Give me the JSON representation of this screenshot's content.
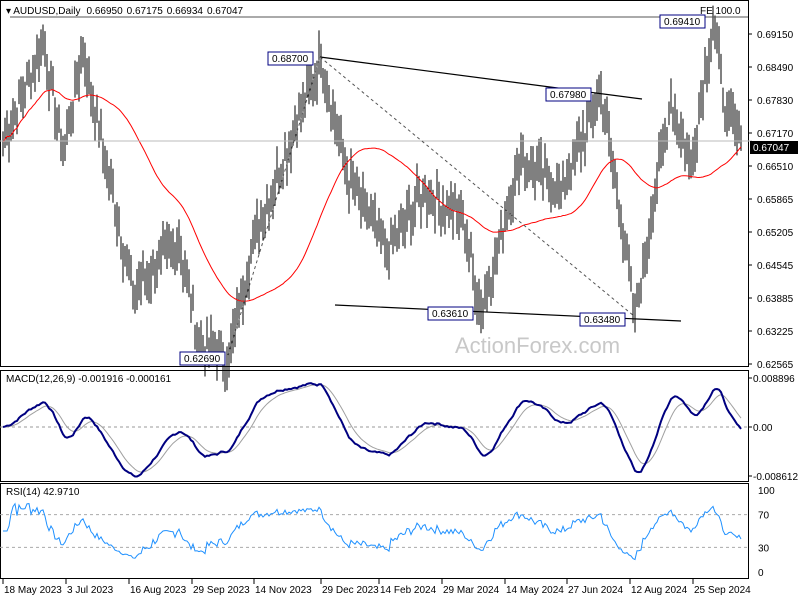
{
  "header": {
    "symbol": "AUDUSD,Daily",
    "open": "0.66950",
    "high": "0.67175",
    "low": "0.66934",
    "close": "0.67047"
  },
  "watermark": "ActionForex.com",
  "fe_label": "FE 100.0",
  "current_price": "0.67047",
  "colors": {
    "bars": "#000000",
    "ma": "#ff0000",
    "macd": "#000080",
    "signal": "#a0a0a0",
    "rsi": "#1e90ff",
    "label_border": "#000080"
  },
  "chart_data": {
    "type": "ohlc",
    "title": "AUDUSD,Daily",
    "price_ticks": [
      "0.69150",
      "0.68490",
      "0.67830",
      "0.67170",
      "0.66510",
      "0.65865",
      "0.65205",
      "0.64545",
      "0.63885",
      "0.63225",
      "0.62565"
    ],
    "ylim": [
      0.62565,
      0.6915
    ],
    "date_ticks": [
      "18 May 2023",
      "3 Jul 2023",
      "16 Aug 2023",
      "29 Sep 2023",
      "14 Nov 2023",
      "29 Dec 2023",
      "14 Feb 2024",
      "29 Mar 2024",
      "14 May 2024",
      "27 Jun 2024",
      "12 Aug 2024",
      "25 Sep 2024"
    ],
    "swing_points": [
      {
        "date": "Oct 2023",
        "price": 0.6269,
        "label": "0.62690"
      },
      {
        "date": "Dec 2023",
        "price": 0.687,
        "label": "0.68700"
      },
      {
        "date": "Apr 2024",
        "price": 0.6361,
        "label": "0.63610"
      },
      {
        "date": "Jul 2024",
        "price": 0.6798,
        "label": "0.67980"
      },
      {
        "date": "Aug 2024",
        "price": 0.6348,
        "label": "0.63480"
      },
      {
        "date": "Sep 2024",
        "price": 0.6941,
        "label": "0.69410"
      }
    ],
    "anchors": [
      [
        0,
        0.67
      ],
      [
        20,
        0.69
      ],
      [
        30,
        0.668
      ],
      [
        40,
        0.688
      ],
      [
        65,
        0.64
      ],
      [
        88,
        0.65
      ],
      [
        98,
        0.63
      ],
      [
        113,
        0.6269
      ],
      [
        125,
        0.65
      ],
      [
        159,
        0.687
      ],
      [
        172,
        0.663
      ],
      [
        192,
        0.648
      ],
      [
        210,
        0.66
      ],
      [
        230,
        0.655
      ],
      [
        239,
        0.6361
      ],
      [
        259,
        0.667
      ],
      [
        279,
        0.66
      ],
      [
        299,
        0.6798
      ],
      [
        309,
        0.655
      ],
      [
        316,
        0.6348
      ],
      [
        324,
        0.655
      ],
      [
        334,
        0.678
      ],
      [
        344,
        0.665
      ],
      [
        355,
        0.6941
      ],
      [
        362,
        0.675
      ],
      [
        369,
        0.6705
      ]
    ],
    "macd": {
      "label": "MACD(12,26,9) -0.001916 -0.000161",
      "ticks": [
        "0.008896",
        "0.00",
        "-0.008612"
      ]
    },
    "rsi": {
      "label": "RSI(14) 42.9710",
      "ticks": [
        "100",
        "70",
        "30",
        "0"
      ]
    }
  }
}
